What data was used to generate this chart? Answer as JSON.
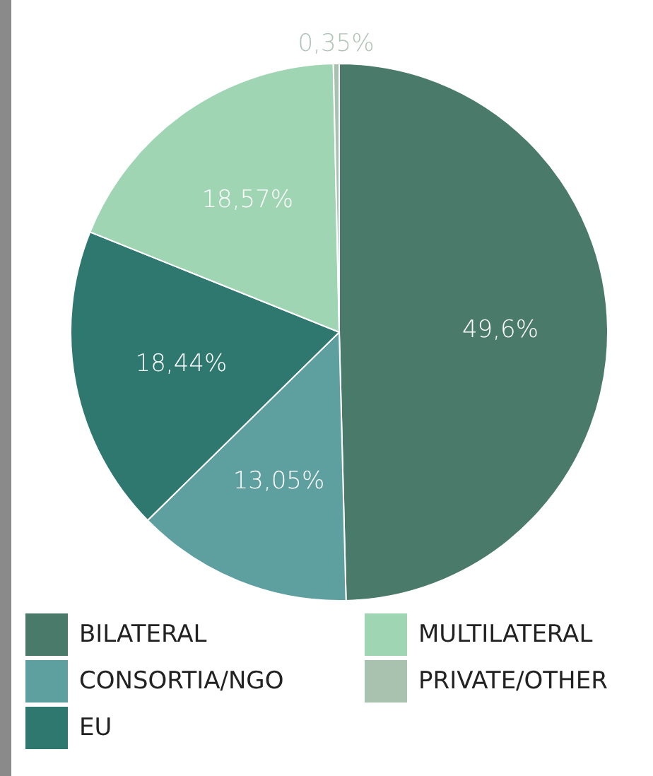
{
  "chart_data": {
    "type": "pie",
    "categories": [
      "BILATERAL",
      "CONSORTIA/NGO",
      "EU",
      "MULTILATERAL",
      "PRIVATE/OTHER"
    ],
    "values": [
      49.6,
      13.05,
      18.44,
      18.57,
      0.35
    ],
    "value_labels": [
      "49,6%",
      "13,05%",
      "18,44%",
      "18,57%",
      "0,35%"
    ],
    "colors": [
      "#4a7a6a",
      "#5e9fa0",
      "#2f7870",
      "#a0d5b4",
      "#a9c2b0"
    ],
    "legend": "bottom"
  }
}
